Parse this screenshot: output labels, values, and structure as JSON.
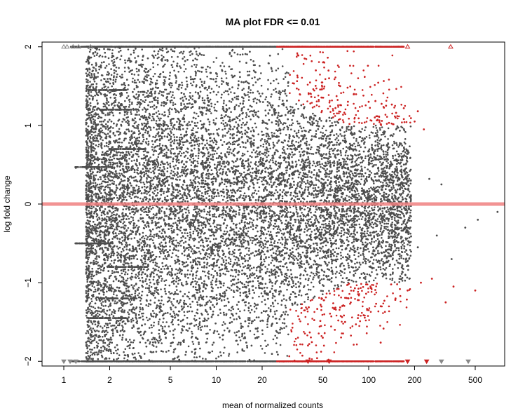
{
  "chart_data": {
    "type": "scatter",
    "title": "MA plot FDR <= 0.01",
    "xlabel": "mean of normalized counts",
    "ylabel": "log fold change",
    "x_scale": "log",
    "xlim": [
      0.72,
      780
    ],
    "ylim": [
      -2.0,
      2.0
    ],
    "x_ticks": [
      1,
      2,
      5,
      10,
      20,
      50,
      100,
      200,
      500
    ],
    "x_tick_labels": [
      "1",
      "2",
      "5",
      "10",
      "20",
      "50",
      "100",
      "200",
      "500"
    ],
    "y_ticks": [
      -2,
      -1,
      0,
      1,
      2
    ],
    "y_tick_labels": [
      "−2",
      "−1",
      "0",
      "1",
      "2"
    ],
    "reference_line": {
      "y": 0,
      "color": "#f08080"
    },
    "grid": false,
    "legend": "none",
    "colors": {
      "not_significant": "#4d4d4d",
      "significant": "#cc2222"
    },
    "series": [
      {
        "points": [
          [
            1.45,
            1.45
          ],
          [
            1.45,
            -1.45
          ],
          [
            1.2,
            0.46
          ],
          [
            1.4,
            0.46
          ],
          [
            1.3,
            -0.5
          ],
          [
            1.55,
            1.18
          ],
          [
            1.8,
            -1.35
          ],
          [
            2.5,
            0.9
          ],
          [
            3.4,
            -0.7
          ],
          [
            4.8,
            0.3
          ],
          [
            7,
            -0.2
          ],
          [
            9.5,
            0.6
          ],
          [
            14,
            -0.9
          ],
          [
            22,
            0.4
          ],
          [
            35,
            -0.3
          ],
          [
            60,
            0.1
          ],
          [
            90,
            0.8
          ],
          [
            130,
            -0.6
          ],
          [
            180,
            0.35
          ],
          [
            210,
            -0.55
          ],
          [
            250,
            0.32
          ],
          [
            280,
            -0.4
          ],
          [
            300,
            0.25
          ],
          [
            350,
            -0.7
          ],
          [
            430,
            -0.3
          ],
          [
            520,
            -0.2
          ],
          [
            700,
            -0.1
          ]
        ]
      },
      {
        "significant": true,
        "points": [
          [
            38,
            1.85
          ],
          [
            45,
            1.7
          ],
          [
            55,
            1.6
          ],
          [
            65,
            1.5
          ],
          [
            80,
            1.4
          ],
          [
            100,
            1.3
          ],
          [
            130,
            1.25
          ],
          [
            150,
            1.1
          ],
          [
            200,
            1.05
          ],
          [
            210,
            1.18
          ],
          [
            230,
            0.95
          ],
          [
            40,
            -1.8
          ],
          [
            50,
            -1.7
          ],
          [
            60,
            -1.6
          ],
          [
            70,
            -1.5
          ],
          [
            85,
            -1.45
          ],
          [
            100,
            -1.35
          ],
          [
            120,
            -1.3
          ],
          [
            150,
            -1.2
          ],
          [
            180,
            -1.1
          ],
          [
            220,
            -1.0
          ],
          [
            260,
            -0.95
          ],
          [
            320,
            -1.25
          ],
          [
            360,
            -1.05
          ],
          [
            500,
            -1.1
          ]
        ]
      }
    ],
    "clipped_markers": {
      "top": [
        1.0,
        1.05,
        1.15,
        1.25,
        1.5,
        180,
        345
      ],
      "bottom": [
        1.0,
        1.1,
        1.2,
        40,
        55,
        180,
        240,
        300,
        450
      ]
    }
  }
}
